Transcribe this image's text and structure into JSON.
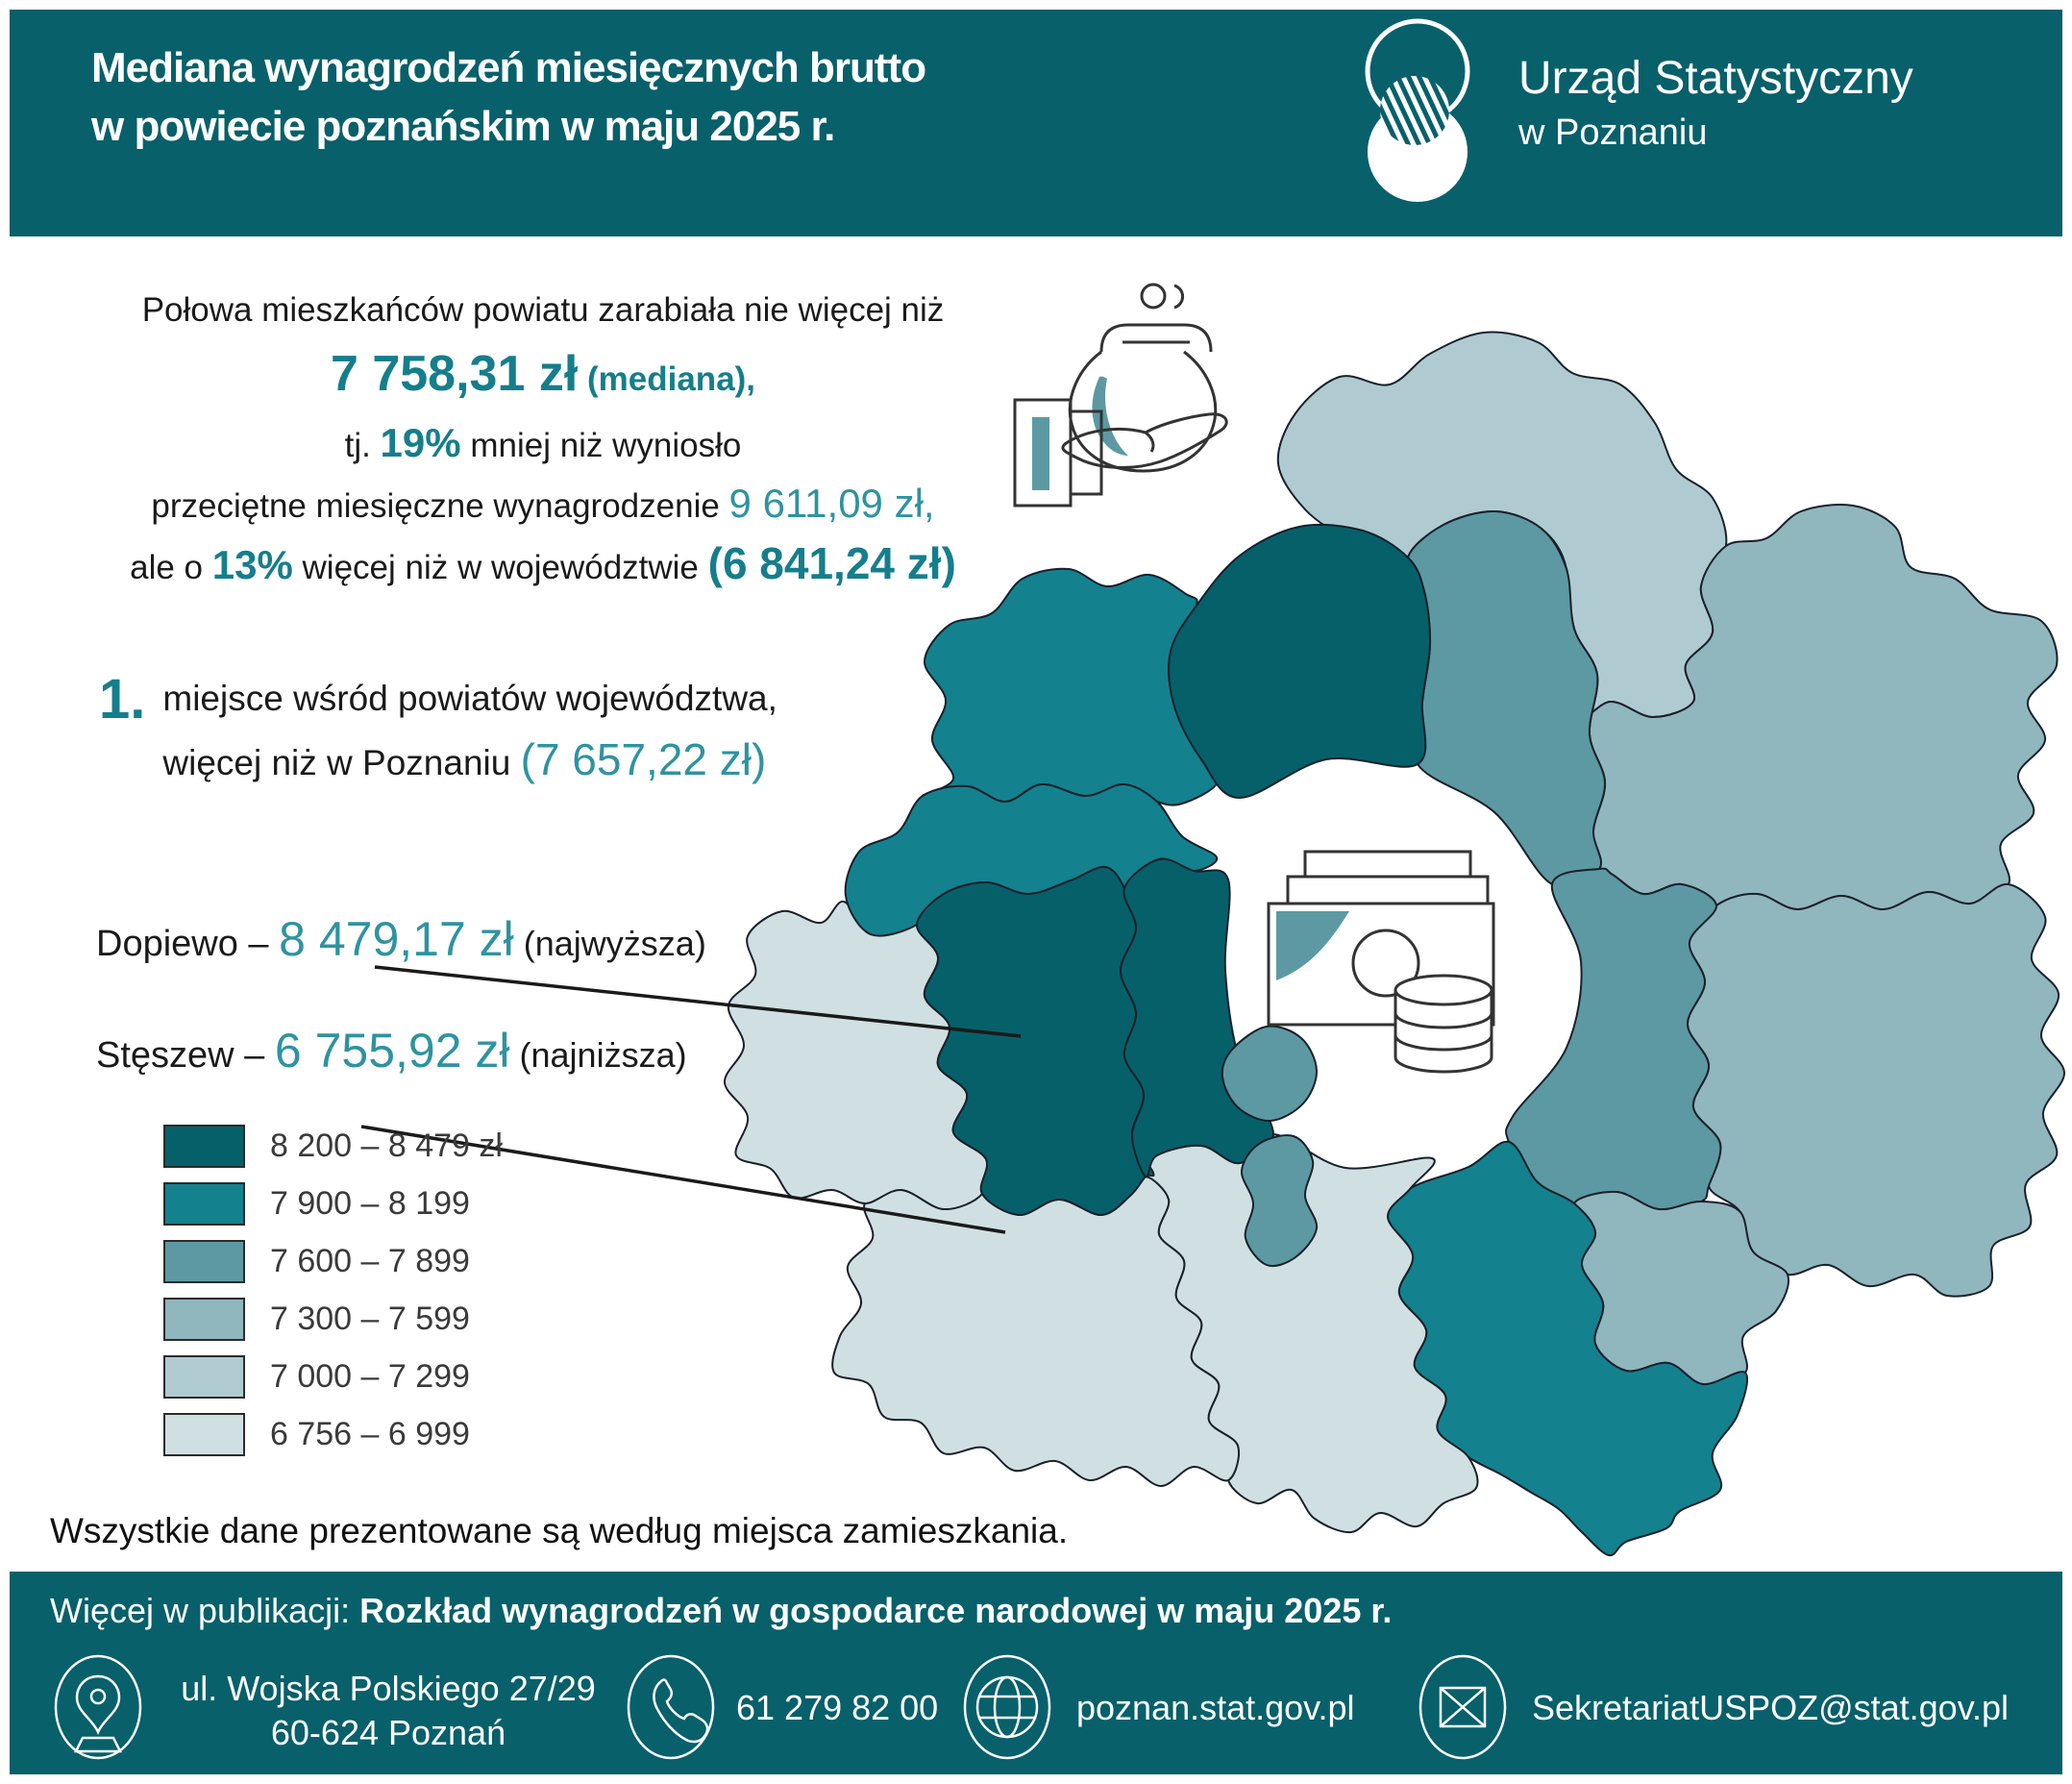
{
  "header": {
    "title_line1": "Mediana wynagrodzeń miesięcznych brutto",
    "title_line2": "w powiecie poznańskim w maju 2025 r.",
    "logo_line1": "Urząd Statystyczny",
    "logo_line2": "w Poznaniu"
  },
  "intro": {
    "line1": "Połowa mieszkańców powiatu zarabiała nie więcej niż",
    "median_amount": "7 758,31 zł",
    "median_note": "(mediana),",
    "line3_pre": "tj. ",
    "pct_less": "19%",
    "line3_post": " mniej niż wyniosło",
    "line4_pre": "przeciętne miesięczne wynagrodzenie ",
    "avg_amount": "9 611,09 zł,",
    "line5_pre": "ale o ",
    "pct_more": "13%",
    "line5_mid": " więcej niż w województwie ",
    "voiv_amount": "(6 841,24 zł)"
  },
  "rank": {
    "number": "1.",
    "line1": "miejsce wśród powiatów województwa,",
    "line2": "więcej niż w Poznaniu ",
    "poznan_amount": "(7 657,22 zł)"
  },
  "callouts": {
    "highest": {
      "name": "Dopiewo – ",
      "amount": "8 479,17 zł",
      "suffix": " (najwyższa)"
    },
    "lowest": {
      "name": "Stęszew – ",
      "amount": "6 755,92 zł",
      "suffix": " (najniższa)"
    }
  },
  "legend": {
    "items": [
      {
        "range": "8 200 – 8 479 zł",
        "color": "#06606A"
      },
      {
        "range": "7 900 – 8 199",
        "color": "#13828E"
      },
      {
        "range": "7 600 – 7 899",
        "color": "#5C99A3"
      },
      {
        "range": "7 300 – 7 599",
        "color": "#90B6BE"
      },
      {
        "range": "7 000 – 7 299",
        "color": "#AFCBD1"
      },
      {
        "range": "6 756 – 6 999",
        "color": "#D0E0E2"
      }
    ]
  },
  "note": "Wszystkie dane prezentowane są według miejsca zamieszkania.",
  "footer": {
    "publication_prefix": "Więcej w publikacji: ",
    "publication_title": "Rozkład wynagrodzeń w gospodarce narodowej w maju 2025 r.",
    "address_line1": "ul. Wojska Polskiego 27/29",
    "address_line2": "60-624 Poznań",
    "phone": "61 279 82 00",
    "website": "poznan.stat.gov.pl",
    "email": "SekretariatUSPOZ@stat.gov.pl"
  },
  "colors": {
    "band": "#07606A",
    "accent_bold": "#157E8C",
    "accent_light": "#2E93A0",
    "map_stroke": "#18202A"
  },
  "map": {
    "regions": [
      {
        "fill": "#AFCBD1"
      },
      {
        "fill": "#90B6BE"
      },
      {
        "fill": "#90B6BE"
      },
      {
        "fill": "#5C99A3"
      },
      {
        "fill": "#5C99A3"
      },
      {
        "fill": "#90B6BE"
      },
      {
        "fill": "#13828E"
      },
      {
        "fill": "#D0E0E2"
      },
      {
        "fill": "#D0E0E2"
      },
      {
        "fill": "#D0E0E2"
      },
      {
        "fill": "#13828E"
      },
      {
        "fill": "#13828E"
      },
      {
        "fill": "#06606A"
      },
      {
        "fill": "#06606A"
      },
      {
        "fill": "#06606A"
      },
      {
        "fill": "#5C99A3"
      },
      {
        "fill": "#5C99A3"
      }
    ]
  },
  "chart_data": {
    "type": "heatmap",
    "subtype": "choropleth-map",
    "title": "Mediana wynagrodzeń miesięcznych brutto w powiecie poznańskim w maju 2025 r.",
    "legend_position": "bottom-left",
    "legend_classes": [
      {
        "range": "8 200 – 8 479 zł",
        "color": "#06606A"
      },
      {
        "range": "7 900 – 8 199",
        "color": "#13828E"
      },
      {
        "range": "7 600 – 7 899",
        "color": "#5C99A3"
      },
      {
        "range": "7 300 – 7 599",
        "color": "#90B6BE"
      },
      {
        "range": "7 000 – 7 299",
        "color": "#AFCBD1"
      },
      {
        "range": "6 756 – 6 999",
        "color": "#D0E0E2"
      }
    ],
    "values": [
      {
        "label": "mediana w powiecie poznańskim",
        "value": "7 758,31 zł"
      },
      {
        "label": "różnica wobec przeciętnego wynagrodzenia",
        "value": "19% mniej"
      },
      {
        "label": "przeciętne miesięczne wynagrodzenie",
        "value": "9 611,09 zł"
      },
      {
        "label": "mediana w województwie",
        "value": "6 841,24 zł (13% więcej w powiecie)"
      },
      {
        "label": "miejsce wśród powiatów województwa",
        "value": "1."
      },
      {
        "label": "mediana w Poznaniu",
        "value": "7 657,22 zł"
      },
      {
        "label": "Dopiewo (najwyższa)",
        "value": "8 479,17 zł"
      },
      {
        "label": "Stęszew (najniższa)",
        "value": "6 755,92 zł"
      }
    ]
  }
}
